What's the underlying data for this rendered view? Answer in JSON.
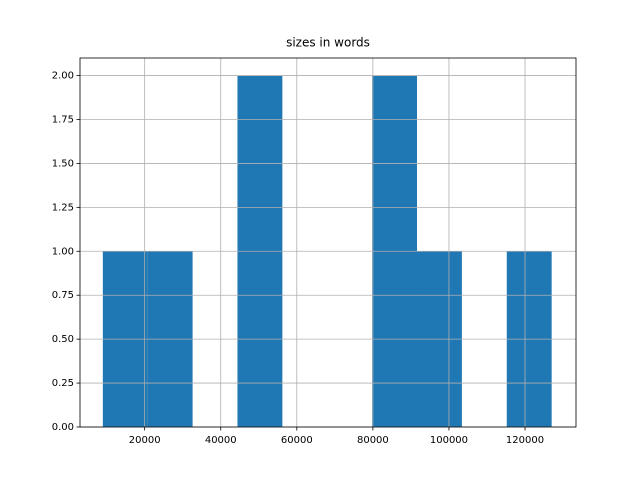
{
  "chart_data": {
    "type": "histogram",
    "title": "sizes in words",
    "bins": [
      9000,
      20800,
      32600,
      44400,
      56200,
      68000,
      79800,
      91600,
      103400,
      115200,
      127000
    ],
    "values": [
      1,
      1,
      0,
      2,
      0,
      0,
      2,
      1,
      0,
      1
    ],
    "color": "#1f77b4",
    "xlim": [
      3000,
      133400
    ],
    "xticks": [
      20000,
      40000,
      60000,
      80000,
      100000,
      120000
    ],
    "ylim": [
      0,
      2.1
    ],
    "yticks": [
      {
        "value": 0,
        "label": "0.00"
      },
      {
        "value": 0.25,
        "label": "0.25"
      },
      {
        "value": 0.5,
        "label": "0.50"
      },
      {
        "value": 0.75,
        "label": "0.75"
      },
      {
        "value": 1,
        "label": "1.00"
      },
      {
        "value": 1.25,
        "label": "1.25"
      },
      {
        "value": 1.5,
        "label": "1.50"
      },
      {
        "value": 1.75,
        "label": "1.75"
      },
      {
        "value": 2,
        "label": "2.00"
      }
    ],
    "grid": true
  }
}
